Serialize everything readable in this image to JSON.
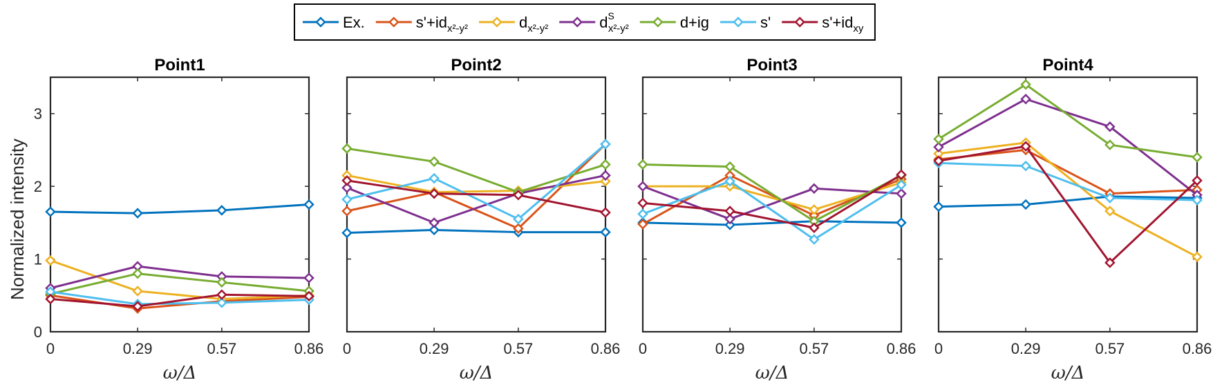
{
  "chart_data": {
    "type": "line",
    "ylabel": "Normalized intensity",
    "xlabel": "ω/Δ",
    "ylim": [
      0,
      3.5
    ],
    "yticks": [
      "0",
      "1",
      "2",
      "3"
    ],
    "categories": [
      "0",
      "0.29",
      "0.57",
      "0.86"
    ],
    "x": [
      0,
      0.29,
      0.57,
      0.86
    ],
    "legend": {
      "location": "top",
      "entries": [
        {
          "key": "ex",
          "text": "Ex.",
          "sub": "",
          "sup": "",
          "color": "#0072BD"
        },
        {
          "key": "s_id",
          "text": "s'+id",
          "sub": "x²-y²",
          "sup": "",
          "color": "#D95319"
        },
        {
          "key": "d",
          "text": "d",
          "sub": "x²-y²",
          "sup": "",
          "color": "#EDB120"
        },
        {
          "key": "dS",
          "text": "d",
          "sub": "x²-y²",
          "sup": "S",
          "color": "#7E2F8E"
        },
        {
          "key": "dig",
          "text": "d+ig",
          "sub": "",
          "sup": "",
          "color": "#77AC30"
        },
        {
          "key": "sp",
          "text": "s'",
          "sub": "",
          "sup": "",
          "color": "#4DBEEE"
        },
        {
          "key": "sidxy",
          "text": "s'+id",
          "sub": "xy",
          "sup": "",
          "color": "#A2142F"
        }
      ]
    },
    "panels": [
      {
        "title": "Point1",
        "show_yaxis": true,
        "series": [
          {
            "name": "Ex.",
            "color": "#0072BD",
            "values": [
              1.65,
              1.63,
              1.67,
              1.75
            ]
          },
          {
            "name": "s'+id x2-y2",
            "color": "#D95319",
            "values": [
              0.5,
              0.32,
              0.42,
              0.48
            ]
          },
          {
            "name": "d x2-y2",
            "color": "#EDB120",
            "values": [
              0.98,
              0.56,
              0.45,
              0.5
            ]
          },
          {
            "name": "dS x2-y2",
            "color": "#7E2F8E",
            "values": [
              0.6,
              0.9,
              0.76,
              0.74
            ]
          },
          {
            "name": "d+ig",
            "color": "#77AC30",
            "values": [
              0.52,
              0.8,
              0.68,
              0.56
            ]
          },
          {
            "name": "s'",
            "color": "#4DBEEE",
            "values": [
              0.55,
              0.38,
              0.4,
              0.44
            ]
          },
          {
            "name": "s'+id xy",
            "color": "#A2142F",
            "values": [
              0.45,
              0.35,
              0.51,
              0.49
            ]
          }
        ]
      },
      {
        "title": "Point2",
        "show_yaxis": false,
        "series": [
          {
            "name": "Ex.",
            "color": "#0072BD",
            "values": [
              1.36,
              1.4,
              1.37,
              1.37
            ]
          },
          {
            "name": "s'+id x2-y2",
            "color": "#D95319",
            "values": [
              1.66,
              1.92,
              1.42,
              2.58
            ]
          },
          {
            "name": "d x2-y2",
            "color": "#EDB120",
            "values": [
              2.15,
              1.92,
              1.94,
              2.07
            ]
          },
          {
            "name": "dS x2-y2",
            "color": "#7E2F8E",
            "values": [
              1.98,
              1.5,
              1.9,
              2.15
            ]
          },
          {
            "name": "d+ig",
            "color": "#77AC30",
            "values": [
              2.52,
              2.34,
              1.92,
              2.3
            ]
          },
          {
            "name": "s'",
            "color": "#4DBEEE",
            "values": [
              1.82,
              2.11,
              1.55,
              2.58
            ]
          },
          {
            "name": "s'+id xy",
            "color": "#A2142F",
            "values": [
              2.08,
              1.9,
              1.88,
              1.64
            ]
          }
        ]
      },
      {
        "title": "Point3",
        "show_yaxis": false,
        "series": [
          {
            "name": "Ex.",
            "color": "#0072BD",
            "values": [
              1.5,
              1.47,
              1.52,
              1.5
            ]
          },
          {
            "name": "s'+id x2-y2",
            "color": "#D95319",
            "values": [
              1.48,
              2.15,
              1.6,
              2.1
            ]
          },
          {
            "name": "d x2-y2",
            "color": "#EDB120",
            "values": [
              2.0,
              2.0,
              1.68,
              2.05
            ]
          },
          {
            "name": "dS x2-y2",
            "color": "#7E2F8E",
            "values": [
              2.0,
              1.55,
              1.97,
              1.9
            ]
          },
          {
            "name": "d+ig",
            "color": "#77AC30",
            "values": [
              2.3,
              2.27,
              1.52,
              2.15
            ]
          },
          {
            "name": "s'",
            "color": "#4DBEEE",
            "values": [
              1.62,
              2.07,
              1.27,
              2.02
            ]
          },
          {
            "name": "s'+id xy",
            "color": "#A2142F",
            "values": [
              1.77,
              1.66,
              1.43,
              2.16
            ]
          }
        ]
      },
      {
        "title": "Point4",
        "show_yaxis": false,
        "series": [
          {
            "name": "Ex.",
            "color": "#0072BD",
            "values": [
              1.72,
              1.75,
              1.86,
              1.84
            ]
          },
          {
            "name": "s'+id x2-y2",
            "color": "#D95319",
            "values": [
              2.37,
              2.5,
              1.9,
              1.95
            ]
          },
          {
            "name": "d x2-y2",
            "color": "#EDB120",
            "values": [
              2.45,
              2.6,
              1.66,
              1.03
            ]
          },
          {
            "name": "dS x2-y2",
            "color": "#7E2F8E",
            "values": [
              2.54,
              3.2,
              2.82,
              1.88
            ]
          },
          {
            "name": "d+ig",
            "color": "#77AC30",
            "values": [
              2.65,
              3.4,
              2.57,
              2.4
            ]
          },
          {
            "name": "s'",
            "color": "#4DBEEE",
            "values": [
              2.32,
              2.28,
              1.84,
              1.81
            ]
          },
          {
            "name": "s'+id xy",
            "color": "#A2142F",
            "values": [
              2.35,
              2.55,
              0.95,
              2.08
            ]
          }
        ]
      }
    ]
  }
}
